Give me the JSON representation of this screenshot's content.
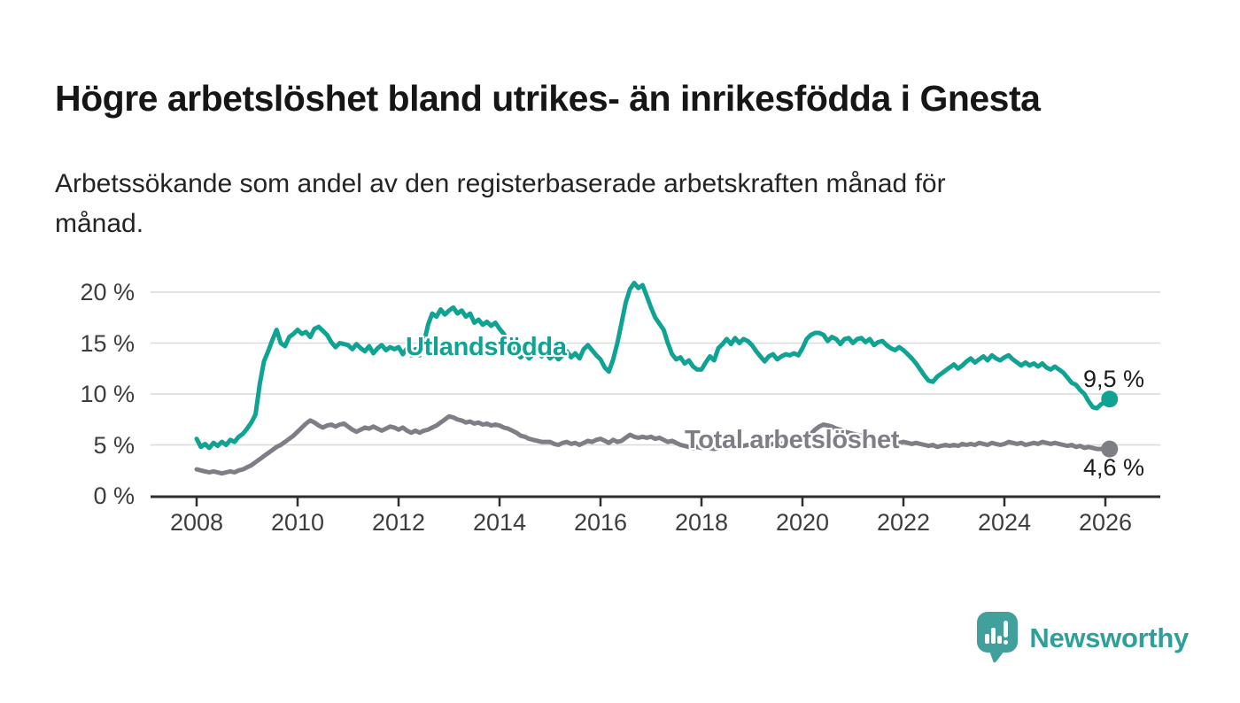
{
  "header": {
    "title": "Högre arbetslöshet bland utrikes- än inrikesfödda i Gnesta",
    "subtitle": "Arbetssökande som andel av den registerbaserade arbetskraften månad för\nmånad."
  },
  "chart_data": {
    "type": "line",
    "title": "Högre arbetslöshet bland utrikes- än inrikesfödda i Gnesta",
    "subtitle": "Arbetssökande som andel av den registerbaserade arbetskraften månad för månad.",
    "x_start_year": 2008,
    "x_start_month": 1,
    "x_step_months": 1,
    "x_end_label": "2026",
    "xlim": [
      2007.1,
      2027.1
    ],
    "ylim": [
      0,
      21.5
    ],
    "grid": true,
    "x_ticks": [
      2008,
      2010,
      2012,
      2014,
      2016,
      2018,
      2020,
      2022,
      2024,
      2026
    ],
    "x_tick_labels": [
      "2008",
      "2010",
      "2012",
      "2014",
      "2016",
      "2018",
      "2020",
      "2022",
      "2024",
      "2026"
    ],
    "y_ticks": [
      0,
      5,
      10,
      15,
      20
    ],
    "y_tick_labels": [
      "0 %",
      "5 %",
      "10 %",
      "15 %",
      "20 %"
    ],
    "colors": {
      "utlandsfodda": "#10a394",
      "total": "#7e7e86",
      "gridline": "#d9d9d9",
      "axis": "#2e2e2e",
      "text": "#1c1c1c"
    },
    "series": [
      {
        "name": "Utlandsfödda",
        "color": "#10a394",
        "end_label": "9,5 %",
        "end_value": 9.5,
        "values": [
          5.6,
          4.8,
          5.1,
          4.7,
          5.2,
          4.9,
          5.3,
          5.0,
          5.5,
          5.3,
          5.8,
          6.1,
          6.6,
          7.2,
          8.0,
          11.0,
          13.2,
          14.2,
          15.3,
          16.3,
          15.0,
          14.7,
          15.6,
          15.9,
          16.3,
          15.9,
          16.1,
          15.6,
          16.4,
          16.6,
          16.2,
          15.8,
          15.1,
          14.6,
          15.0,
          14.9,
          14.8,
          14.4,
          14.9,
          14.5,
          14.2,
          14.7,
          14.0,
          14.5,
          14.8,
          14.3,
          14.6,
          14.4,
          14.6,
          13.9,
          14.5,
          13.8,
          14.4,
          13.8,
          15.0,
          16.8,
          17.9,
          17.6,
          18.3,
          17.8,
          18.2,
          18.5,
          17.9,
          18.2,
          17.6,
          17.9,
          17.0,
          17.3,
          16.8,
          17.1,
          16.7,
          17.0,
          16.4,
          15.9,
          15.3,
          14.7,
          14.1,
          13.6,
          14.0,
          13.5,
          13.9,
          14.3,
          13.7,
          14.1,
          13.5,
          13.9,
          13.4,
          13.8,
          14.2,
          13.6,
          14.0,
          13.5,
          14.4,
          14.8,
          14.3,
          13.8,
          13.4,
          12.6,
          12.2,
          13.4,
          15.0,
          17.0,
          19.0,
          20.3,
          20.9,
          20.4,
          20.7,
          19.6,
          18.5,
          17.5,
          16.9,
          16.3,
          15.0,
          13.9,
          13.4,
          13.6,
          13.0,
          13.3,
          12.7,
          12.4,
          12.4,
          13.1,
          13.7,
          13.3,
          14.5,
          14.9,
          15.4,
          14.9,
          15.5,
          15.0,
          15.4,
          15.2,
          14.8,
          14.2,
          13.7,
          13.2,
          13.7,
          13.9,
          13.4,
          13.7,
          13.9,
          13.8,
          14.0,
          13.8,
          14.5,
          15.4,
          15.8,
          16.0,
          16.0,
          15.8,
          15.2,
          15.6,
          15.4,
          14.9,
          15.4,
          15.5,
          15.0,
          15.4,
          15.5,
          15.1,
          15.4,
          14.8,
          15.1,
          15.2,
          14.8,
          14.5,
          14.3,
          14.6,
          14.3,
          13.9,
          13.5,
          13.0,
          12.4,
          11.8,
          11.3,
          11.2,
          11.7,
          12.0,
          12.3,
          12.6,
          12.9,
          12.5,
          12.8,
          13.2,
          13.5,
          13.1,
          13.4,
          13.7,
          13.3,
          13.8,
          13.5,
          13.3,
          13.6,
          13.8,
          13.4,
          13.1,
          12.8,
          13.1,
          12.8,
          13.0,
          12.7,
          13.0,
          12.6,
          12.4,
          12.7,
          12.4,
          12.1,
          11.6,
          11.1,
          10.9,
          10.4,
          10.0,
          9.3,
          8.7,
          8.6,
          9.0,
          9.2,
          9.5
        ]
      },
      {
        "name": "Total arbetslöshet",
        "color": "#7e7e86",
        "end_label": "4,6 %",
        "end_value": 4.6,
        "values": [
          2.6,
          2.5,
          2.4,
          2.3,
          2.4,
          2.3,
          2.2,
          2.3,
          2.4,
          2.3,
          2.5,
          2.6,
          2.8,
          3.0,
          3.3,
          3.6,
          3.9,
          4.2,
          4.5,
          4.8,
          5.0,
          5.3,
          5.6,
          5.9,
          6.3,
          6.7,
          7.1,
          7.4,
          7.2,
          6.9,
          6.7,
          6.9,
          7.0,
          6.8,
          7.0,
          7.1,
          6.8,
          6.5,
          6.3,
          6.5,
          6.7,
          6.6,
          6.8,
          6.6,
          6.4,
          6.6,
          6.8,
          6.7,
          6.5,
          6.7,
          6.4,
          6.2,
          6.4,
          6.2,
          6.4,
          6.5,
          6.7,
          6.9,
          7.2,
          7.5,
          7.8,
          7.7,
          7.5,
          7.4,
          7.2,
          7.3,
          7.1,
          7.2,
          7.0,
          7.1,
          6.9,
          7.0,
          6.9,
          6.7,
          6.6,
          6.4,
          6.2,
          5.9,
          5.8,
          5.6,
          5.5,
          5.4,
          5.3,
          5.3,
          5.3,
          5.1,
          5.0,
          5.2,
          5.3,
          5.1,
          5.2,
          5.0,
          5.2,
          5.4,
          5.3,
          5.5,
          5.6,
          5.4,
          5.2,
          5.5,
          5.3,
          5.4,
          5.7,
          6.0,
          5.8,
          5.7,
          5.8,
          5.7,
          5.8,
          5.6,
          5.7,
          5.5,
          5.3,
          5.4,
          5.2,
          5.0,
          4.9,
          4.8,
          4.7,
          4.8,
          4.7,
          4.8,
          4.7,
          4.6,
          4.7,
          4.8,
          4.7,
          4.8,
          4.9,
          4.8,
          4.9,
          5.0,
          5.0,
          4.9,
          5.0,
          5.1,
          5.0,
          5.1,
          5.2,
          5.1,
          5.2,
          5.3,
          5.4,
          5.5,
          5.6,
          5.8,
          6.1,
          6.5,
          6.8,
          7.0,
          6.9,
          6.8,
          6.6,
          6.5,
          6.3,
          6.2,
          6.1,
          6.0,
          5.9,
          5.8,
          5.7,
          5.6,
          5.5,
          5.4,
          5.4,
          5.3,
          5.2,
          5.2,
          5.3,
          5.2,
          5.1,
          5.2,
          5.1,
          5.0,
          4.9,
          5.0,
          4.8,
          4.9,
          5.0,
          4.9,
          5.0,
          4.9,
          5.1,
          5.0,
          5.1,
          5.0,
          5.2,
          5.1,
          5.0,
          5.2,
          5.1,
          5.0,
          5.1,
          5.3,
          5.2,
          5.1,
          5.2,
          5.0,
          5.1,
          5.2,
          5.1,
          5.3,
          5.2,
          5.1,
          5.2,
          5.1,
          5.0,
          4.9,
          5.0,
          4.8,
          4.9,
          4.7,
          4.8,
          4.7,
          4.6,
          4.6,
          4.7,
          4.6
        ]
      }
    ],
    "legend_position": "inline-labels"
  },
  "branding": {
    "name": "Newsworthy",
    "logo_color": "#41a09b",
    "text_color": "#2f9f99"
  }
}
